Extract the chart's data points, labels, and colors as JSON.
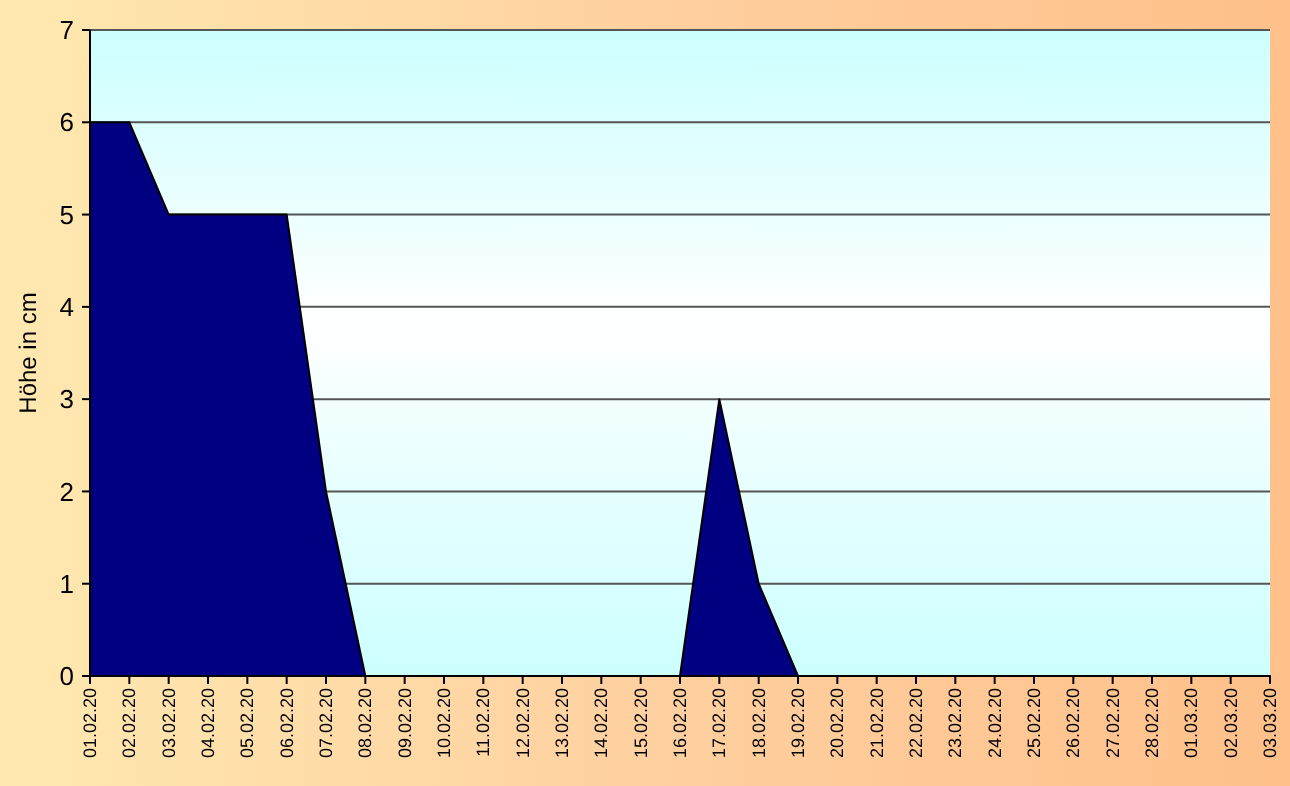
{
  "chart_data": {
    "type": "area",
    "ylabel": "Höhe in cm",
    "categories": [
      "01.02.20",
      "02.02.20",
      "03.02.20",
      "04.02.20",
      "05.02.20",
      "06.02.20",
      "07.02.20",
      "08.02.20",
      "09.02.20",
      "10.02.20",
      "11.02.20",
      "12.02.20",
      "13.02.20",
      "14.02.20",
      "15.02.20",
      "16.02.20",
      "17.02.20",
      "18.02.20",
      "19.02.20",
      "20.02.20",
      "21.02.20",
      "22.02.20",
      "23.02.20",
      "24.02.20",
      "25.02.20",
      "26.02.20",
      "27.02.20",
      "28.02.20",
      "01.03.20",
      "02.03.20",
      "03.03.20"
    ],
    "series": [
      {
        "color": "#000080",
        "values": [
          6,
          6,
          5,
          5,
          5,
          5,
          2,
          0,
          0,
          0,
          0,
          0,
          0,
          0,
          0,
          0,
          3,
          1,
          0,
          0,
          0,
          0,
          0,
          0,
          0,
          0,
          0,
          0,
          0,
          0,
          0
        ]
      }
    ],
    "ylim": [
      0,
      7
    ],
    "yticks": [
      0,
      1,
      2,
      3,
      4,
      5,
      6,
      7
    ],
    "grid": "y"
  }
}
